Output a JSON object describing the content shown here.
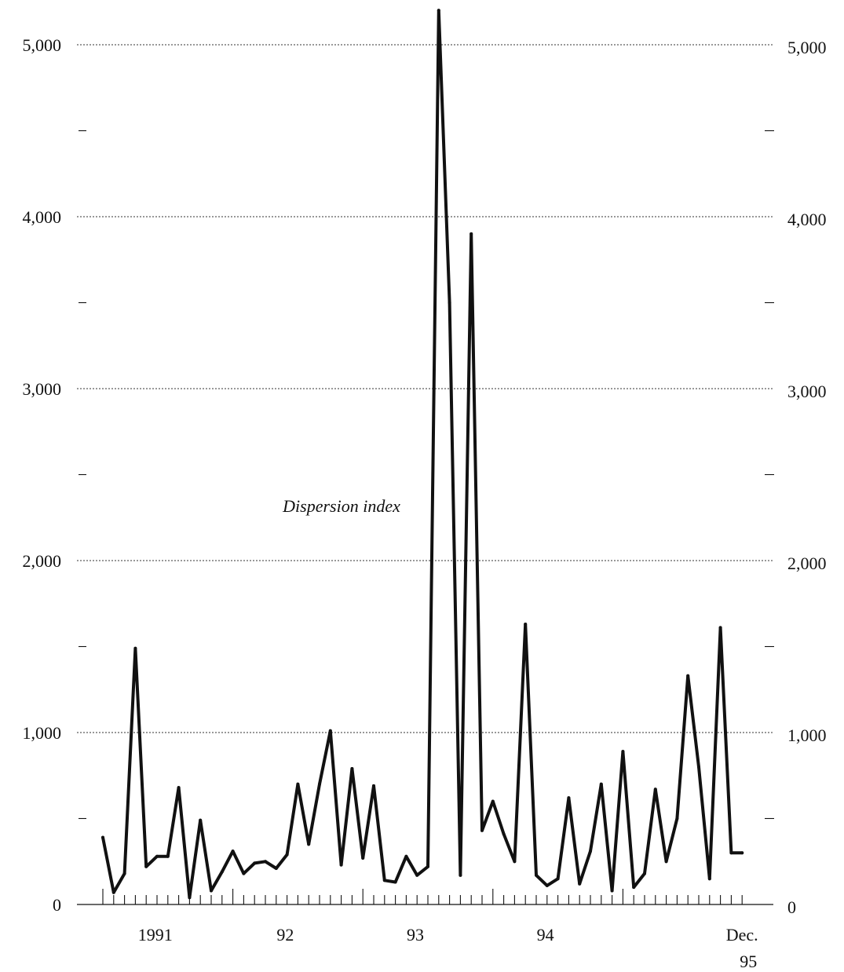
{
  "chart_data": {
    "type": "line",
    "title": "",
    "xlabel": "",
    "ylabel": "",
    "ylim": [
      0,
      5000
    ],
    "grid": true,
    "y_ticks_major": [
      0,
      1000,
      2000,
      3000,
      4000,
      5000
    ],
    "y_tick_labels": [
      "0",
      "1,000",
      "2,000",
      "3,000",
      "4,000",
      "5,000"
    ],
    "y_ticks_minor": [
      500,
      1500,
      2500,
      3500,
      4500
    ],
    "x_tick_labels": [
      {
        "text": "1991",
        "month_index": 6
      },
      {
        "text": "92",
        "month_index": 18
      },
      {
        "text": "93",
        "month_index": 30
      },
      {
        "text": "94",
        "month_index": 42
      },
      {
        "text": "Dec.",
        "month_index": 59
      },
      {
        "text": "95",
        "month_index": 59
      }
    ],
    "x_year_boundaries": [
      12,
      24,
      36,
      48
    ],
    "x_start": "1990-12",
    "x_end": "1995-12",
    "annotations": [
      {
        "text": "Dispersion index"
      }
    ],
    "series": [
      {
        "name": "",
        "values": [
          390,
          70,
          180,
          1490,
          220,
          280,
          280,
          680,
          40,
          490,
          80,
          190,
          310,
          180,
          240,
          250,
          210,
          290,
          700,
          350,
          700,
          1010,
          230,
          790,
          270,
          690,
          140,
          130,
          280,
          170,
          220,
          5200,
          3500,
          170,
          3900,
          430,
          600,
          410,
          250,
          1630,
          170,
          110,
          150,
          620,
          120,
          310,
          700,
          80,
          890,
          100,
          180,
          670,
          250,
          500,
          1330,
          800,
          150,
          1610,
          300,
          300
        ]
      }
    ]
  }
}
